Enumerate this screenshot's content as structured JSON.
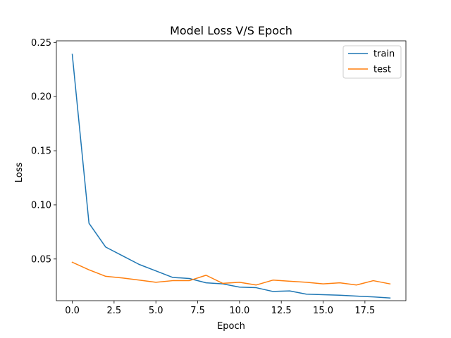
{
  "chart_data": {
    "type": "line",
    "title": "Model Loss V/S Epoch",
    "xlabel": "Epoch",
    "ylabel": "Loss",
    "xlim": [
      -0.95,
      19.95
    ],
    "ylim": [
      0.0115,
      0.2515
    ],
    "x_ticks": [
      0,
      2.5,
      5,
      7.5,
      10,
      12.5,
      15,
      17.5
    ],
    "x_tick_labels": [
      "0.0",
      "2.5",
      "5.0",
      "7.5",
      "10.0",
      "12.5",
      "15.0",
      "17.5"
    ],
    "y_ticks": [
      0.05,
      0.1,
      0.15,
      0.2,
      0.25
    ],
    "y_tick_labels": [
      "0.05",
      "0.10",
      "0.15",
      "0.20",
      "0.25"
    ],
    "grid": false,
    "legend_position": "top-right",
    "x": [
      0,
      1,
      2,
      3,
      4,
      5,
      6,
      7,
      8,
      9,
      10,
      11,
      12,
      13,
      14,
      15,
      16,
      17,
      18,
      19
    ],
    "series": [
      {
        "name": "train",
        "color": "#1f77b4",
        "values": [
          0.239,
          0.083,
          0.061,
          0.053,
          0.045,
          0.039,
          0.033,
          0.032,
          0.028,
          0.027,
          0.024,
          0.0235,
          0.02,
          0.0205,
          0.0175,
          0.017,
          0.0165,
          0.0157,
          0.015,
          0.014
        ]
      },
      {
        "name": "test",
        "color": "#ff7f0e",
        "values": [
          0.047,
          0.04,
          0.034,
          0.0325,
          0.0305,
          0.0285,
          0.03,
          0.03,
          0.035,
          0.0275,
          0.0285,
          0.026,
          0.0305,
          0.0295,
          0.0285,
          0.027,
          0.028,
          0.026,
          0.03,
          0.027
        ]
      }
    ]
  }
}
